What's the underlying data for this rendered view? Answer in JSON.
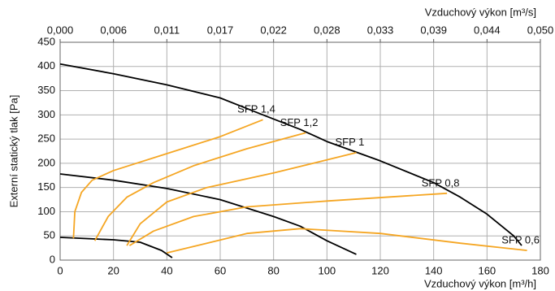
{
  "chart_data": {
    "type": "line",
    "xlabel": "Vzduchový výkon [m³/h]",
    "x2label": "Vzduchový výkon [m³/s]",
    "ylabel": "Externí statický tlak [Pa]",
    "xlim": [
      0,
      180
    ],
    "xticks": [
      0,
      20,
      40,
      60,
      80,
      100,
      120,
      140,
      160,
      180
    ],
    "x2lim": [
      0,
      0.05
    ],
    "x2ticks": [
      {
        "value": 0,
        "label": "0,000"
      },
      {
        "value": 0.005556,
        "label": "0,006"
      },
      {
        "value": 0.011111,
        "label": "0,011"
      },
      {
        "value": 0.016667,
        "label": "0,017"
      },
      {
        "value": 0.022222,
        "label": "0,022"
      },
      {
        "value": 0.027778,
        "label": "0,028"
      },
      {
        "value": 0.033333,
        "label": "0,033"
      },
      {
        "value": 0.038889,
        "label": "0,039"
      },
      {
        "value": 0.044444,
        "label": "0,044"
      },
      {
        "value": 0.05,
        "label": "0,050"
      }
    ],
    "ylim": [
      0,
      450
    ],
    "yticks": [
      0,
      50,
      100,
      150,
      200,
      250,
      300,
      350,
      400,
      450
    ],
    "grid": true,
    "series": [
      {
        "color": "#000000",
        "x": [
          0,
          20,
          40,
          60,
          76,
          90,
          100,
          120,
          140,
          150,
          160,
          170,
          173
        ],
        "values": [
          405,
          385,
          362,
          335,
          300,
          270,
          245,
          205,
          160,
          130,
          95,
          50,
          30
        ]
      },
      {
        "color": "#000000",
        "x": [
          0,
          20,
          40,
          60,
          80,
          90,
          100,
          111
        ],
        "values": [
          178,
          165,
          148,
          125,
          90,
          70,
          40,
          12
        ]
      },
      {
        "color": "#000000",
        "x": [
          0,
          20,
          30,
          38,
          42
        ],
        "values": [
          47,
          42,
          37,
          20,
          5
        ]
      },
      {
        "name": "SFP 1,4",
        "color": "#f5a623",
        "x": [
          5,
          5.5,
          8,
          12,
          20,
          40,
          60,
          76
        ],
        "values": [
          45,
          100,
          140,
          165,
          185,
          220,
          255,
          290
        ]
      },
      {
        "name": "SFP 1,2",
        "color": "#f5a623",
        "x": [
          13,
          18,
          25,
          35,
          50,
          70,
          92
        ],
        "values": [
          40,
          90,
          130,
          160,
          195,
          230,
          263
        ]
      },
      {
        "name": "SFP 1",
        "color": "#f5a623",
        "x": [
          25,
          30,
          40,
          55,
          80,
          111
        ],
        "values": [
          30,
          75,
          120,
          150,
          180,
          222
        ]
      },
      {
        "name": "SFP 0,8",
        "color": "#f5a623",
        "x": [
          26,
          35,
          50,
          70,
          100,
          145
        ],
        "values": [
          30,
          60,
          90,
          110,
          122,
          138
        ]
      },
      {
        "name": "SFP 0,6",
        "color": "#f5a623",
        "x": [
          40,
          55,
          70,
          90,
          120,
          150,
          175
        ],
        "values": [
          15,
          35,
          55,
          65,
          55,
          35,
          20
        ]
      }
    ]
  }
}
